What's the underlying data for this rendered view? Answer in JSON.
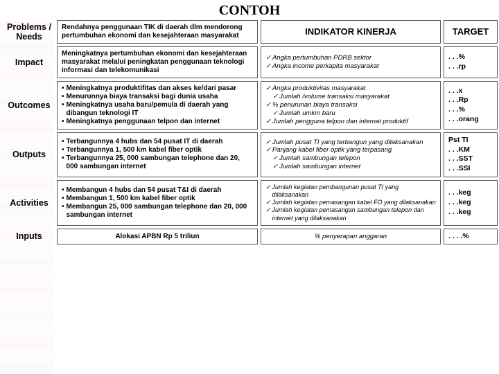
{
  "title": "CONTOH",
  "headers": {
    "indikator": "INDIKATOR  KINERJA",
    "target": "TARGET"
  },
  "rows": {
    "problems": {
      "label": "Problems / Needs",
      "desc": "Rendahnya penggunaan TIK di daerah dlm mendorong pertumbuhan ekonomi dan kesejahteraan masyarakat"
    },
    "impact": {
      "label": "Impact",
      "desc": "Meningkatnya pertumbuhan ekonomi dan kesejahteraan masyarakat melalui peningkatan penggunaan teknologi informasi dan telekomunikasi",
      "indik": [
        {
          "t": "Angka pertumbuhan PDRB sektor",
          "i": 0
        },
        {
          "t": "Angka income  perkapita masyarakat",
          "i": 0
        }
      ],
      "target": ". . .%\n. . .rp"
    },
    "outcomes": {
      "label": "Outcomes",
      "bullets": [
        "Meningkatnya produktifitas dan akses ke/dari pasar",
        "Menurunnya biaya transaksi bagi dunia usaha",
        "Meningkatnya usaha baru/pemula di daerah yang dibangun teknologi IT",
        "Meningkatnya penggunaan telpon dan internet"
      ],
      "indik": [
        {
          "t": "Angka produktivitas  masyarakat",
          "i": 0
        },
        {
          "t": "Jumlah /volume  transaksi masyarakat",
          "i": 1
        },
        {
          "t": "% penurunan  biaya  transaksi",
          "i": 0
        },
        {
          "t": "Jumlah  umkm  baru",
          "i": 1
        },
        {
          "t": "Jumlah pengguna telpon  dan internat  produktif",
          "i": 0
        }
      ],
      "target": ". . .x\n. . .Rp\n. . .%\n. . .orang"
    },
    "outputs": {
      "label": "Outputs",
      "bullets": [
        "Terbangunnya 4 hubs dan 54 pusat IT di daerah",
        "Terbangunnya 1, 500 km kabel fiber optik",
        "Terbangunnya 25, 000 sambungan telephone dan 20, 000 sambungan internet"
      ],
      "indik": [
        {
          "t": "Jumlah pusat  TI yang terbangun yang  dilaksanakan",
          "i": 0
        },
        {
          "t": "Panjang  kabel  fiber optik yang terpasang",
          "i": 0
        },
        {
          "t": "Jumlah sambungan telepon",
          "i": 1
        },
        {
          "t": "Jumlah sambungan internet",
          "i": 1
        }
      ],
      "target": "Pst TI\n. . .KM\n. . .SST\n. . .SSI"
    },
    "activities": {
      "label": "Activities",
      "bullets": [
        "Membangun 4 hubs dan 54 pusat T&I di daerah",
        "Membangun 1, 500 km kabel fiber optik",
        "Membangun 25, 000 sambungan telephone dan 20, 000 sambungan internet"
      ],
      "indik": [
        {
          "t": "Jumlah kegiatan  pembangunan  pusat TI yang  dilaksanakan",
          "i": 0
        },
        {
          "t": "Jumlah  kegiatan  pemasangan  kabel  FO yang  dilaksanakan",
          "i": 0
        },
        {
          "t": "Jumlah  kegiatan pemasangan sambungan telepon dan internet yang dilaksanakan",
          "i": 0
        }
      ],
      "target": ". . .keg\n. . .keg\n. . .keg"
    },
    "inputs": {
      "label": "Inputs",
      "desc": "Alokasi APBN Rp 5 triliun",
      "indik_text": "% penyerapan anggaran",
      "target": ". . . .%"
    }
  },
  "glyphs": {
    "check": "✓",
    "bullet": "•"
  },
  "colors": {
    "border": "#555555",
    "bg": "#ffffff"
  }
}
